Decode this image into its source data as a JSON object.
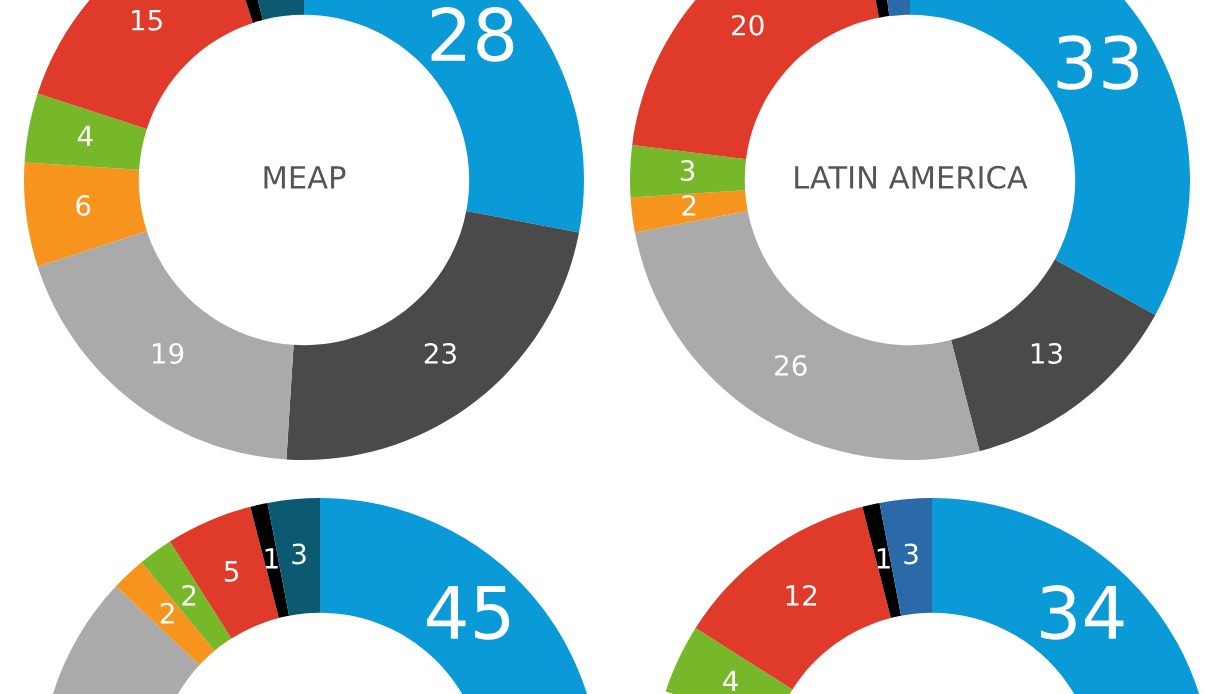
{
  "chart_data": [
    {
      "type": "donut",
      "title": "MEAP",
      "categories": [
        null,
        null,
        null,
        null,
        null,
        null,
        null,
        null
      ],
      "values": [
        28,
        23,
        19,
        6,
        4,
        15,
        1,
        4
      ],
      "value_labels": [
        "28",
        "23",
        "19",
        "6",
        "4",
        "15",
        null,
        null
      ],
      "colors": [
        "#0a9ad7",
        "#4a4a4a",
        "#aaaaaa",
        "#f7941d",
        "#76b82a",
        "#e03a2a",
        "#000000",
        "#0b5a72"
      ]
    },
    {
      "type": "donut",
      "title": "LATIN AMERICA",
      "categories": [
        null,
        null,
        null,
        null,
        null,
        null,
        null,
        null
      ],
      "values": [
        33,
        13,
        26,
        2,
        3,
        20,
        1,
        2
      ],
      "value_labels": [
        "33",
        "13",
        "26",
        "2",
        "3",
        "20",
        null,
        null
      ],
      "colors": [
        "#0a9ad7",
        "#4a4a4a",
        "#aaaaaa",
        "#f7941d",
        "#76b82a",
        "#e03a2a",
        "#000000",
        "#2a6aa8"
      ]
    },
    {
      "type": "donut",
      "categories": [
        null,
        null,
        null,
        null,
        null,
        null,
        null,
        null
      ],
      "values": [
        45,
        null,
        20,
        2,
        2,
        5,
        1,
        3
      ],
      "value_labels": [
        "45",
        null,
        null,
        "2",
        "2",
        "5",
        "1",
        "3"
      ],
      "colors": [
        "#0a9ad7",
        "#4a4a4a",
        "#aaaaaa",
        "#f7941d",
        "#76b82a",
        "#e03a2a",
        "#000000",
        "#0b5a72"
      ]
    },
    {
      "type": "donut",
      "categories": [
        null,
        null,
        null,
        null,
        null,
        null,
        null,
        null
      ],
      "values": [
        34,
        null,
        null,
        null,
        4,
        12,
        1,
        3
      ],
      "value_labels": [
        "34",
        null,
        null,
        null,
        "4",
        "12",
        "1",
        "3"
      ],
      "colors": [
        "#0a9ad7",
        "#4a4a4a",
        "#aaaaaa",
        "#f7941d",
        "#76b82a",
        "#e03a2a",
        "#000000",
        "#2a6aa8"
      ]
    }
  ]
}
